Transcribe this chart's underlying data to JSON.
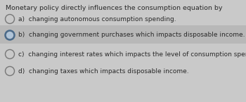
{
  "title": "Monetary policy directly influences the consumption equation by",
  "options": [
    {
      "label": "a)",
      "text": "changing autonomous consumption spending.",
      "highlighted": false
    },
    {
      "label": "b)",
      "text": "changing government purchases which impacts disposable income.",
      "highlighted": true
    },
    {
      "label": "c)",
      "text": "changing interest rates which impacts the level of consumption spending.",
      "highlighted": false
    },
    {
      "label": "d)",
      "text": "changing taxes which impacts disposable income.",
      "highlighted": false
    }
  ],
  "bg_color": "#c9c9c9",
  "highlight_color": "#b8b8b8",
  "text_color": "#2a2a2a",
  "title_fontsize": 6.8,
  "option_fontsize": 6.5,
  "circle_color_outer": "#777777",
  "circle_color_inner": "#d8d8d8",
  "circle_color_b_inner": "#b0c4d8",
  "circle_color_b_outer": "#4a6a8a"
}
